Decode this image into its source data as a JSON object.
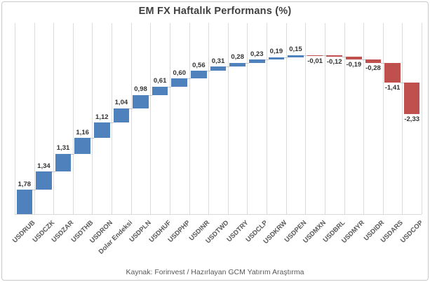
{
  "title": "EM FX Haftalık Performans (%)",
  "source": "Kaynak: Forinvest / Hazırlayan GCM Yatırım Araştırma",
  "chart_data": {
    "type": "bar",
    "subtype": "waterfall",
    "title": "EM FX Haftalık Performans (%)",
    "categories": [
      "USDRUB",
      "USDCZK",
      "USDZAR",
      "USDTHB",
      "USDRON",
      "Dolar Endeksi",
      "USDPLN",
      "USDHUF",
      "USDPHP",
      "USDINR",
      "USDTWD",
      "USDTRY",
      "USDCLP",
      "USDKRW",
      "USDPEN",
      "USDMXN",
      "USDBRL",
      "USDMYR",
      "USDIDR",
      "USDARS",
      "USDCOP"
    ],
    "values": [
      1.78,
      1.34,
      1.31,
      1.16,
      1.12,
      1.04,
      0.98,
      0.61,
      0.6,
      0.56,
      0.31,
      0.28,
      0.23,
      0.19,
      0.15,
      -0.01,
      -0.12,
      -0.19,
      -0.28,
      -1.41,
      -2.33
    ],
    "labels": [
      "1,78",
      "1,34",
      "1,31",
      "1,16",
      "1,12",
      "1,04",
      "0,98",
      "0,61",
      "0,60",
      "0,56",
      "0,31",
      "0,28",
      "0,23",
      "0,19",
      "0,15",
      "-0,01",
      "-0,12",
      "-0,19",
      "-0,28",
      "-1,41",
      "-2,33"
    ],
    "xlabel": "",
    "ylabel": "",
    "ylim": [
      0,
      14
    ],
    "baseline": 0,
    "legend": "none",
    "grid": "vertical-only",
    "colors": {
      "positive": "#4f81bd",
      "negative": "#c0504d",
      "gridline": "#dbdbdb",
      "connector": "#c6c6c6",
      "title_text": "#3f3f3f",
      "label_text": "#333333",
      "axis_text": "#595959"
    }
  }
}
